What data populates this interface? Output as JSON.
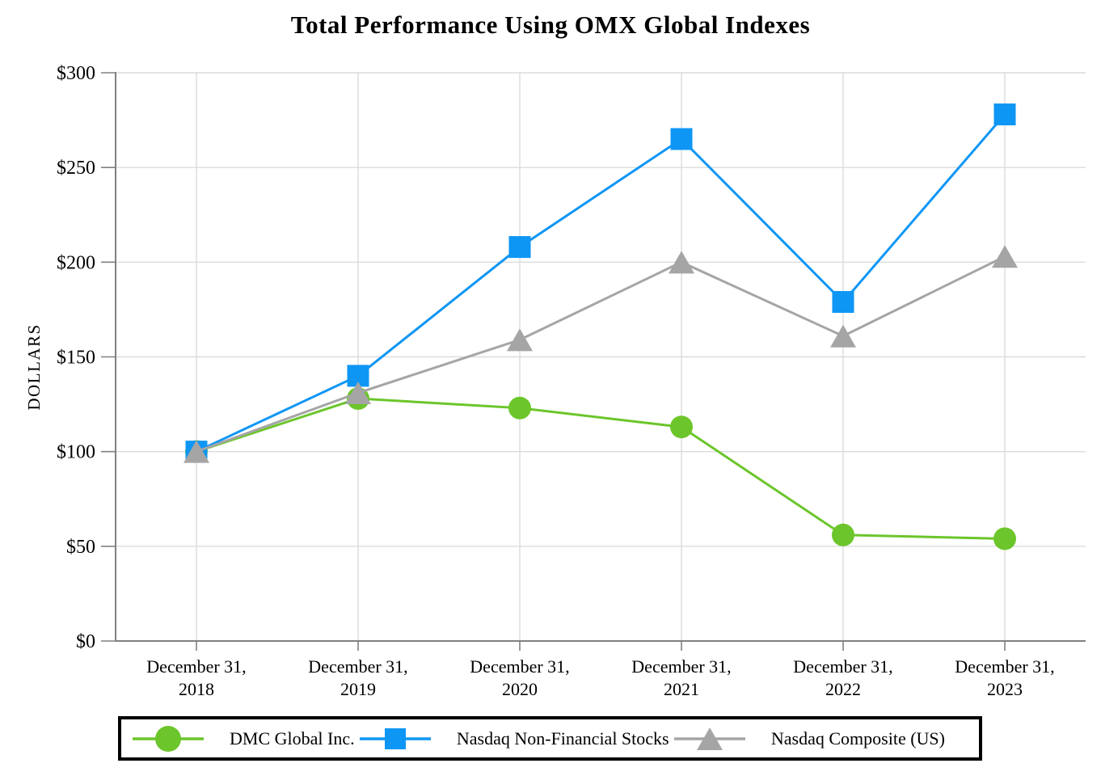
{
  "title": "Total Performance Using OMX Global Indexes",
  "chart_data": {
    "type": "line",
    "title": "Total Performance Using OMX Global Indexes",
    "xlabel": "",
    "ylabel": "DOLLARS",
    "ylim": [
      0,
      300
    ],
    "grid": true,
    "legend_position": "bottom",
    "y_ticks": [
      {
        "value": 0,
        "label": "$0"
      },
      {
        "value": 50,
        "label": "$50"
      },
      {
        "value": 100,
        "label": "$100"
      },
      {
        "value": 150,
        "label": "$150"
      },
      {
        "value": 200,
        "label": "$200"
      },
      {
        "value": 250,
        "label": "$250"
      },
      {
        "value": 300,
        "label": "$300"
      }
    ],
    "categories": [
      {
        "line1": "December 31,",
        "line2": "2018"
      },
      {
        "line1": "December 31,",
        "line2": "2019"
      },
      {
        "line1": "December 31,",
        "line2": "2020"
      },
      {
        "line1": "December 31,",
        "line2": "2021"
      },
      {
        "line1": "December 31,",
        "line2": "2022"
      },
      {
        "line1": "December 31,",
        "line2": "2023"
      }
    ],
    "series": [
      {
        "name": "DMC Global Inc.",
        "marker": "circle",
        "color": "#6CC62B",
        "values": [
          100,
          128,
          123,
          113,
          56,
          54
        ]
      },
      {
        "name": "Nasdaq Non-Financial Stocks",
        "marker": "square",
        "color": "#0E96F5",
        "values": [
          100,
          140,
          208,
          265,
          179,
          278
        ]
      },
      {
        "name": "Nasdaq Composite (US)",
        "marker": "triangle",
        "color": "#A5A5A5",
        "values": [
          100,
          131,
          159,
          200,
          161,
          203
        ]
      }
    ]
  }
}
